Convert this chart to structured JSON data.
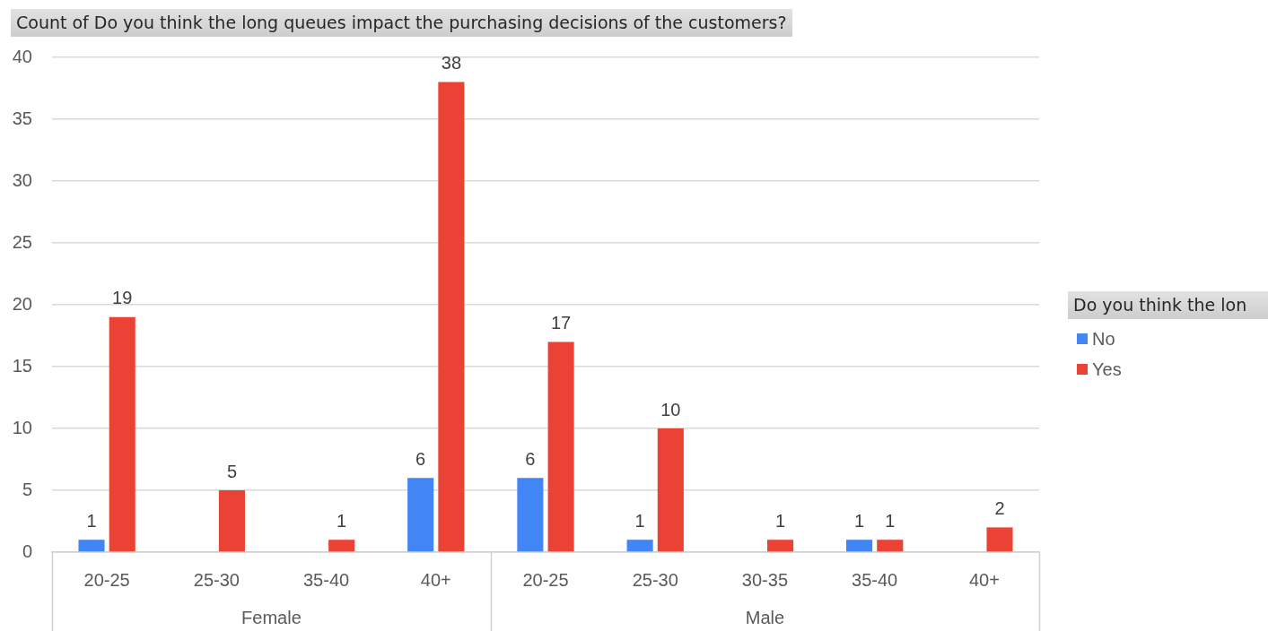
{
  "chart_data": {
    "type": "bar",
    "title": "Count of Do you think the long queues impact the purchasing decisions of the customers?",
    "legend_title": "Do you think the lon",
    "categories": [
      "20-25",
      "25-30",
      "35-40",
      "40+",
      "20-25",
      "25-30",
      "30-35",
      "35-40",
      "40+"
    ],
    "series": [
      {
        "name": "No",
        "color": "#4285f4",
        "values": [
          1,
          null,
          null,
          6,
          6,
          1,
          null,
          1,
          null
        ]
      },
      {
        "name": "Yes",
        "color": "#ea4335",
        "values": [
          19,
          5,
          1,
          38,
          17,
          10,
          1,
          1,
          2
        ]
      }
    ],
    "ylim": [
      0,
      40
    ],
    "yticks": [
      0,
      5,
      10,
      15,
      20,
      25,
      30,
      35,
      40
    ],
    "grid": "y",
    "legend": "right",
    "data_labels": true,
    "annotations": [
      "Female",
      "Male"
    ]
  }
}
